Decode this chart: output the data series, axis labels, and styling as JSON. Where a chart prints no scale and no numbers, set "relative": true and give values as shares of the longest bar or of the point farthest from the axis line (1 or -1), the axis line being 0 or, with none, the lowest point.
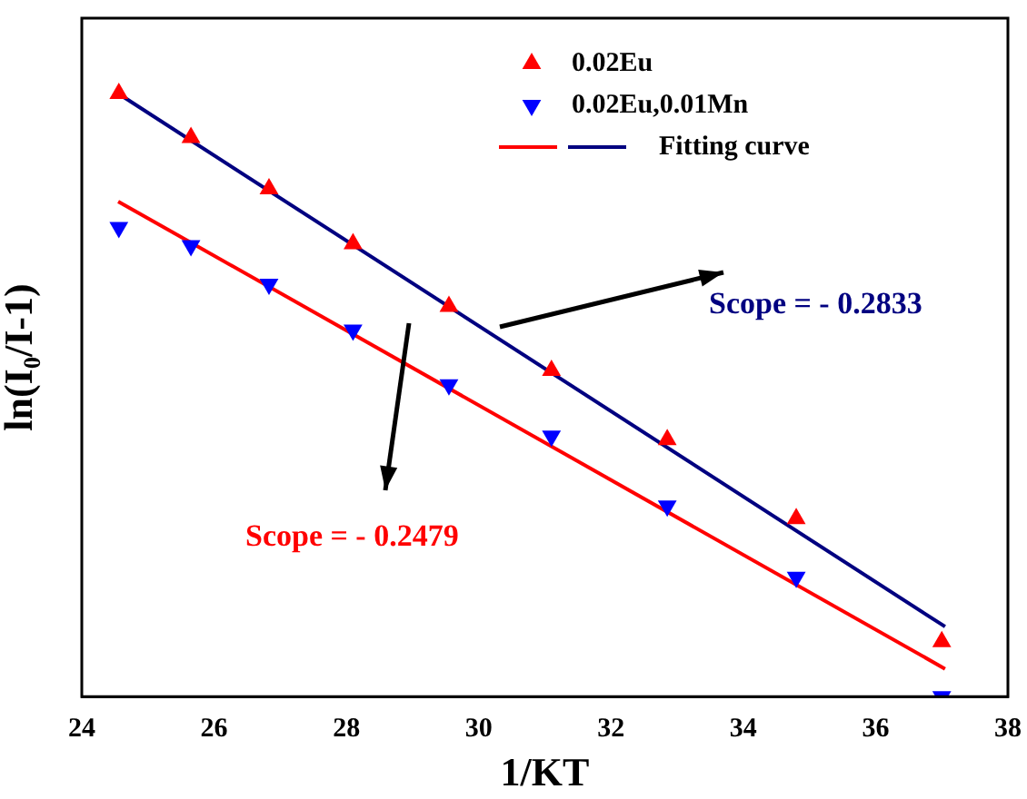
{
  "chart_data": {
    "type": "scatter",
    "xlabel": "1/KT",
    "ylabel": "ln(I₀/I-1)",
    "relative": true,
    "xlim": [
      24,
      38
    ],
    "xticks": [
      24,
      26,
      28,
      30,
      32,
      34,
      36,
      38
    ],
    "grid": false,
    "legend": "top right",
    "marker": "triangle",
    "series": [
      {
        "name": "0.02Eu",
        "color": "#ff0000",
        "x": [
          24.56,
          25.65,
          26.83,
          28.1,
          29.55,
          31.1,
          32.85,
          34.8,
          37.0
        ],
        "values": [
          1,
          0.927,
          0.842,
          0.751,
          0.647,
          0.541,
          0.426,
          0.295,
          0.091
        ]
      },
      {
        "name": "0.02Eu,0.01Mn",
        "color": "#0000ff",
        "x": [
          24.56,
          25.65,
          26.83,
          28.1,
          29.55,
          31.1,
          32.85,
          34.8,
          37.0
        ],
        "values": [
          0.778,
          0.748,
          0.684,
          0.608,
          0.517,
          0.432,
          0.316,
          0.198,
          0
        ]
      },
      {
        "name": "Fitting curve",
        "type": "line",
        "color": "#000080",
        "marker": "none",
        "x": [
          24.55,
          37.05
        ],
        "values": [
          1,
          0.116
        ]
      },
      {
        "type": "line",
        "color": "#ff0000",
        "marker": "none",
        "x": [
          24.55,
          37.05
        ],
        "values": [
          0.821,
          0.046
        ]
      }
    ],
    "annotations": [
      "Scope = - 0.2833",
      "Scope = - 0.2479"
    ]
  }
}
